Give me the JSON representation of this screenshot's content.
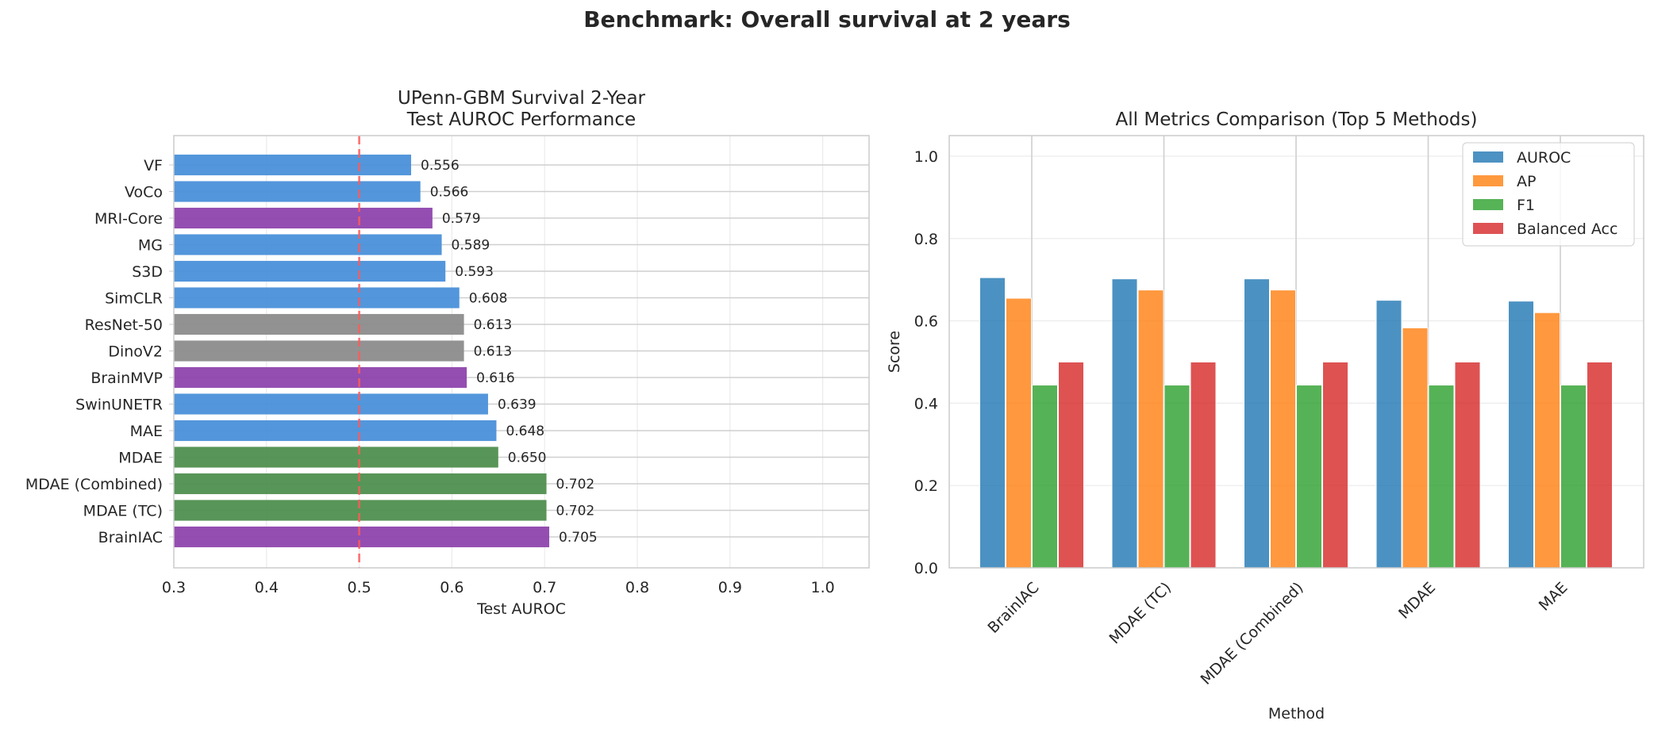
{
  "figure_title": "Benchmark: Overall survival at 2 years",
  "colors": {
    "ssl_blue": "#4a90d9",
    "foundation_purple": "#8e44ad",
    "imagenet_gray": "#8c8c8c",
    "mdae_green": "#4f8f4f",
    "chance_line": "#ff5a5a",
    "auroc": "#1f77b4",
    "ap": "#ff7f0e",
    "f1": "#2ca02c",
    "balanced_acc": "#d62728"
  },
  "chart_data": [
    {
      "type": "bar",
      "orientation": "horizontal",
      "title": "UPenn-GBM Survival 2-Year\nTest AUROC Performance",
      "xlabel": "Test AUROC",
      "ylabel": "",
      "xlim": [
        0.3,
        1.05
      ],
      "xticks": [
        "0.3",
        "0.4",
        "0.5",
        "0.6",
        "0.7",
        "0.8",
        "0.9",
        "1.0"
      ],
      "reference_line": 0.5,
      "grid": true,
      "categories": [
        "VF",
        "VoCo",
        "MRI-Core",
        "MG",
        "S3D",
        "SimCLR",
        "ResNet-50",
        "DinoV2",
        "BrainMVP",
        "SwinUNETR",
        "MAE",
        "MDAE",
        "MDAE (Combined)",
        "MDAE (TC)",
        "BrainIAC"
      ],
      "values": [
        0.556,
        0.566,
        0.579,
        0.589,
        0.593,
        0.608,
        0.613,
        0.613,
        0.616,
        0.639,
        0.648,
        0.65,
        0.702,
        0.702,
        0.705
      ],
      "value_labels": [
        "0.556",
        "0.566",
        "0.579",
        "0.589",
        "0.593",
        "0.608",
        "0.613",
        "0.613",
        "0.616",
        "0.639",
        "0.648",
        "0.650",
        "0.702",
        "0.702",
        "0.705"
      ],
      "bar_colors": [
        "ssl_blue",
        "ssl_blue",
        "foundation_purple",
        "ssl_blue",
        "ssl_blue",
        "ssl_blue",
        "imagenet_gray",
        "imagenet_gray",
        "foundation_purple",
        "ssl_blue",
        "ssl_blue",
        "mdae_green",
        "mdae_green",
        "mdae_green",
        "foundation_purple"
      ]
    },
    {
      "type": "bar",
      "title": "All Metrics Comparison (Top 5 Methods)",
      "xlabel": "Method",
      "ylabel": "Score",
      "ylim": [
        0,
        1.05
      ],
      "yticks": [
        "0.0",
        "0.2",
        "0.4",
        "0.6",
        "0.8",
        "1.0"
      ],
      "grid": true,
      "legend_position": "top-right",
      "categories": [
        "BrainIAC",
        "MDAE (TC)",
        "MDAE (Combined)",
        "MDAE",
        "MAE"
      ],
      "series": [
        {
          "name": "AUROC",
          "color": "auroc",
          "values": [
            0.705,
            0.702,
            0.702,
            0.65,
            0.648
          ]
        },
        {
          "name": "AP",
          "color": "ap",
          "values": [
            0.655,
            0.675,
            0.675,
            0.583,
            0.62
          ]
        },
        {
          "name": "F1",
          "color": "f1",
          "values": [
            0.444,
            0.444,
            0.444,
            0.444,
            0.444
          ]
        },
        {
          "name": "Balanced Acc",
          "color": "balanced_acc",
          "values": [
            0.5,
            0.5,
            0.5,
            0.5,
            0.5
          ]
        }
      ]
    }
  ]
}
